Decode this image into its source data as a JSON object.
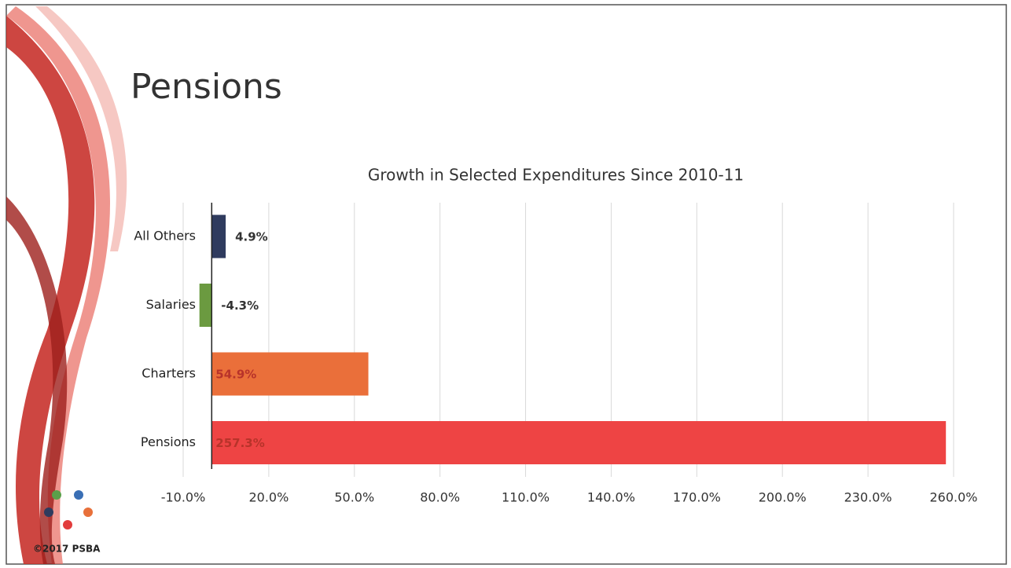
{
  "slide": {
    "title": "Pensions",
    "footer": "©2017 PSBA"
  },
  "chart_data": {
    "type": "hbar",
    "title": "Growth in Selected Expenditures Since 2010-11",
    "categories": [
      "All Others",
      "Salaries",
      "Charters",
      "Pensions"
    ],
    "values": [
      4.9,
      -4.3,
      54.9,
      257.3
    ],
    "value_labels": [
      "4.9%",
      "-4.3%",
      "54.9%",
      "257.3%"
    ],
    "colors": [
      "#2f3b5e",
      "#6b9a40",
      "#ea6f3a",
      "#ee4444"
    ],
    "xlim": [
      -10,
      260
    ],
    "xticks": [
      {
        "value": -10,
        "label": "-10.0%"
      },
      {
        "value": 20,
        "label": "20.0%"
      },
      {
        "value": 50,
        "label": "50.0%"
      },
      {
        "value": 80,
        "label": "80.0%"
      },
      {
        "value": 110,
        "label": "110.0%"
      },
      {
        "value": 140,
        "label": "140.0%"
      },
      {
        "value": 170,
        "label": "170.0%"
      },
      {
        "value": 200,
        "label": "200.0%"
      },
      {
        "value": 230,
        "label": "230.0%"
      },
      {
        "value": 260,
        "label": "260.0%"
      }
    ],
    "grid": true
  }
}
